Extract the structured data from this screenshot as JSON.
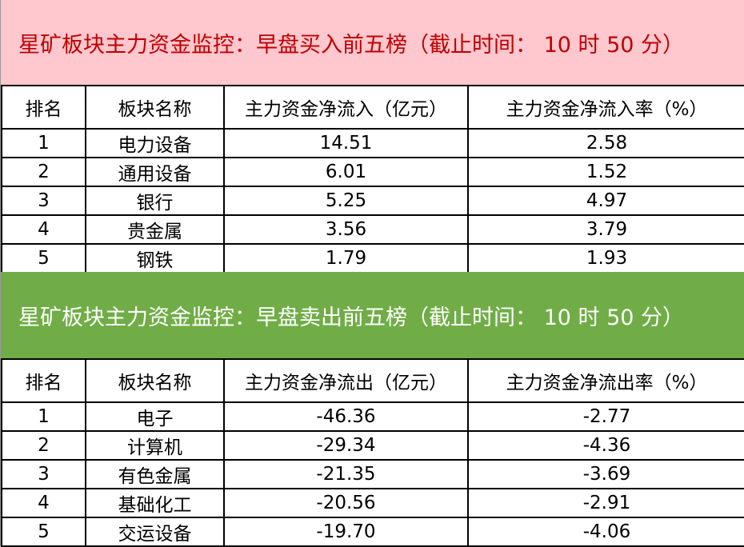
{
  "buy": {
    "title": "星矿板块主力资金监控：早盘买入前五榜（截止时间： 10 时 50 分）",
    "header_color": "#ffc7ce",
    "title_color": "#c00000",
    "columns": [
      "排名",
      "板块名称",
      "主力资金净流入（亿元）",
      "主力资金净流入率（%）"
    ],
    "rows": [
      [
        "1",
        "电力设备",
        "14.51",
        "2.58"
      ],
      [
        "2",
        "通用设备",
        "6.01",
        "1.52"
      ],
      [
        "3",
        "银行",
        "5.25",
        "4.97"
      ],
      [
        "4",
        "贵金属",
        "3.56",
        "3.79"
      ],
      [
        "5",
        "钢铁",
        "1.79",
        "1.93"
      ]
    ]
  },
  "sell": {
    "title": "星矿板块主力资金监控：早盘卖出前五榜（截止时间： 10 时 50 分）",
    "header_color": "#70ad47",
    "title_color": "#ffffff",
    "columns": [
      "排名",
      "板块名称",
      "主力资金净流出（亿元）",
      "主力资金净流出率（%）"
    ],
    "rows": [
      [
        "1",
        "电子",
        "-46.36",
        "-2.77"
      ],
      [
        "2",
        "计算机",
        "-29.34",
        "-4.36"
      ],
      [
        "3",
        "有色金属",
        "-21.35",
        "-3.69"
      ],
      [
        "4",
        "基础化工",
        "-20.56",
        "-2.91"
      ],
      [
        "5",
        "交运设备",
        "-19.70",
        "-4.06"
      ]
    ]
  }
}
